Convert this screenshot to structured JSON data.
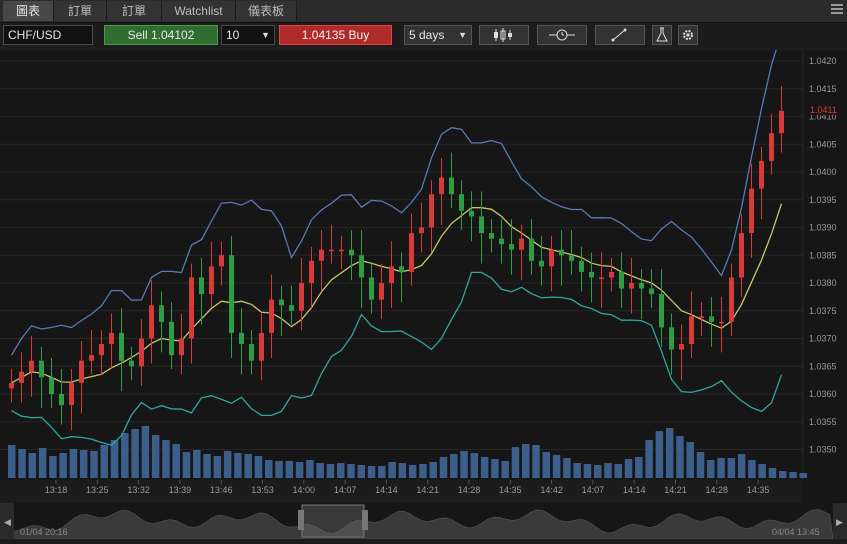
{
  "tabs": [
    {
      "label": "圖表",
      "active": true
    },
    {
      "label": "訂單",
      "active": false
    },
    {
      "label": "訂單",
      "active": false
    },
    {
      "label": "Watchlist",
      "active": false
    },
    {
      "label": "儀表板",
      "active": false
    }
  ],
  "toolbar": {
    "symbol": "CHF/USD",
    "sell_label": "Sell",
    "sell_price": "1.04102",
    "quantity": "10",
    "buy_price": "1.04135",
    "buy_label": "Buy",
    "period": "5 days",
    "icons": [
      "candlestick-type-icon",
      "indicator-clock-icon",
      "drawing-tool-icon",
      "flask-icon",
      "settings-gear-icon"
    ]
  },
  "chart_data": {
    "type": "candlestick",
    "symbol": "CHF/USD",
    "y_ticks": [
      "1.0420",
      "1.0415",
      "1.0410",
      "1.0405",
      "1.0400",
      "1.0395",
      "1.0390",
      "1.0385",
      "1.0380",
      "1.0375",
      "1.0370",
      "1.0365",
      "1.0360",
      "1.0355",
      "1.0350"
    ],
    "x_ticks": [
      "13:18",
      "13:25",
      "13:32",
      "13:39",
      "13:46",
      "13:53",
      "14:00",
      "14:07",
      "14:14",
      "14:21",
      "14:28",
      "14:35",
      "14:42",
      "14:07",
      "14:14",
      "14:21",
      "14:28",
      "14:35"
    ],
    "ylim": [
      1.0347,
      1.0421
    ],
    "last_price_label": "1.0411",
    "close": [
      1.0362,
      1.0364,
      1.0366,
      1.0363,
      1.036,
      1.0358,
      1.0362,
      1.0366,
      1.0367,
      1.0369,
      1.0371,
      1.0366,
      1.0365,
      1.037,
      1.0376,
      1.0373,
      1.0367,
      1.037,
      1.0381,
      1.0378,
      1.0383,
      1.0385,
      1.0371,
      1.0369,
      1.0366,
      1.0371,
      1.0377,
      1.0376,
      1.0375,
      1.038,
      1.0384,
      1.0386,
      1.0386,
      1.0386,
      1.0385,
      1.0381,
      1.0377,
      1.038,
      1.0383,
      1.0382,
      1.0389,
      1.039,
      1.0396,
      1.0399,
      1.0396,
      1.0393,
      1.0392,
      1.0389,
      1.0388,
      1.0387,
      1.0386,
      1.0388,
      1.0384,
      1.0383,
      1.0386,
      1.0385,
      1.0384,
      1.0382,
      1.0381,
      1.0381,
      1.0382,
      1.0379,
      1.038,
      1.0379,
      1.0378,
      1.0372,
      1.0368,
      1.0369,
      1.0374,
      1.0374,
      1.0373,
      1.0373,
      1.0381,
      1.0389,
      1.0397,
      1.0402,
      1.0407,
      1.0411
    ],
    "bands": [
      "upper-bollinger",
      "moving-average",
      "lower-bollinger"
    ],
    "volume": [
      33,
      29,
      25,
      30,
      22,
      25,
      29,
      28,
      27,
      33,
      38,
      45,
      49,
      52,
      43,
      38,
      34,
      26,
      28,
      24,
      22,
      27,
      25,
      24,
      22,
      18,
      17,
      17,
      16,
      18,
      15,
      14,
      15,
      14,
      13,
      12,
      12,
      16,
      15,
      13,
      14,
      16,
      21,
      24,
      27,
      25,
      21,
      19,
      17,
      31,
      34,
      33,
      26,
      23,
      20,
      15,
      14,
      13,
      15,
      14,
      19,
      21,
      38,
      47,
      50,
      42,
      36,
      26,
      18,
      20,
      20,
      24,
      18,
      14,
      10,
      7,
      6,
      5
    ],
    "navigator": {
      "start_label": "01/04 20:16",
      "end_label": "04/04 13:45"
    }
  },
  "colors": {
    "up": "#2e9e44",
    "down": "#d83a3a",
    "upper_band": "#5978b4",
    "ma": "#c8c66a",
    "lower_band": "#2fa89c",
    "volume": "#3c5e8a",
    "price_tag": "#e03c3c"
  }
}
